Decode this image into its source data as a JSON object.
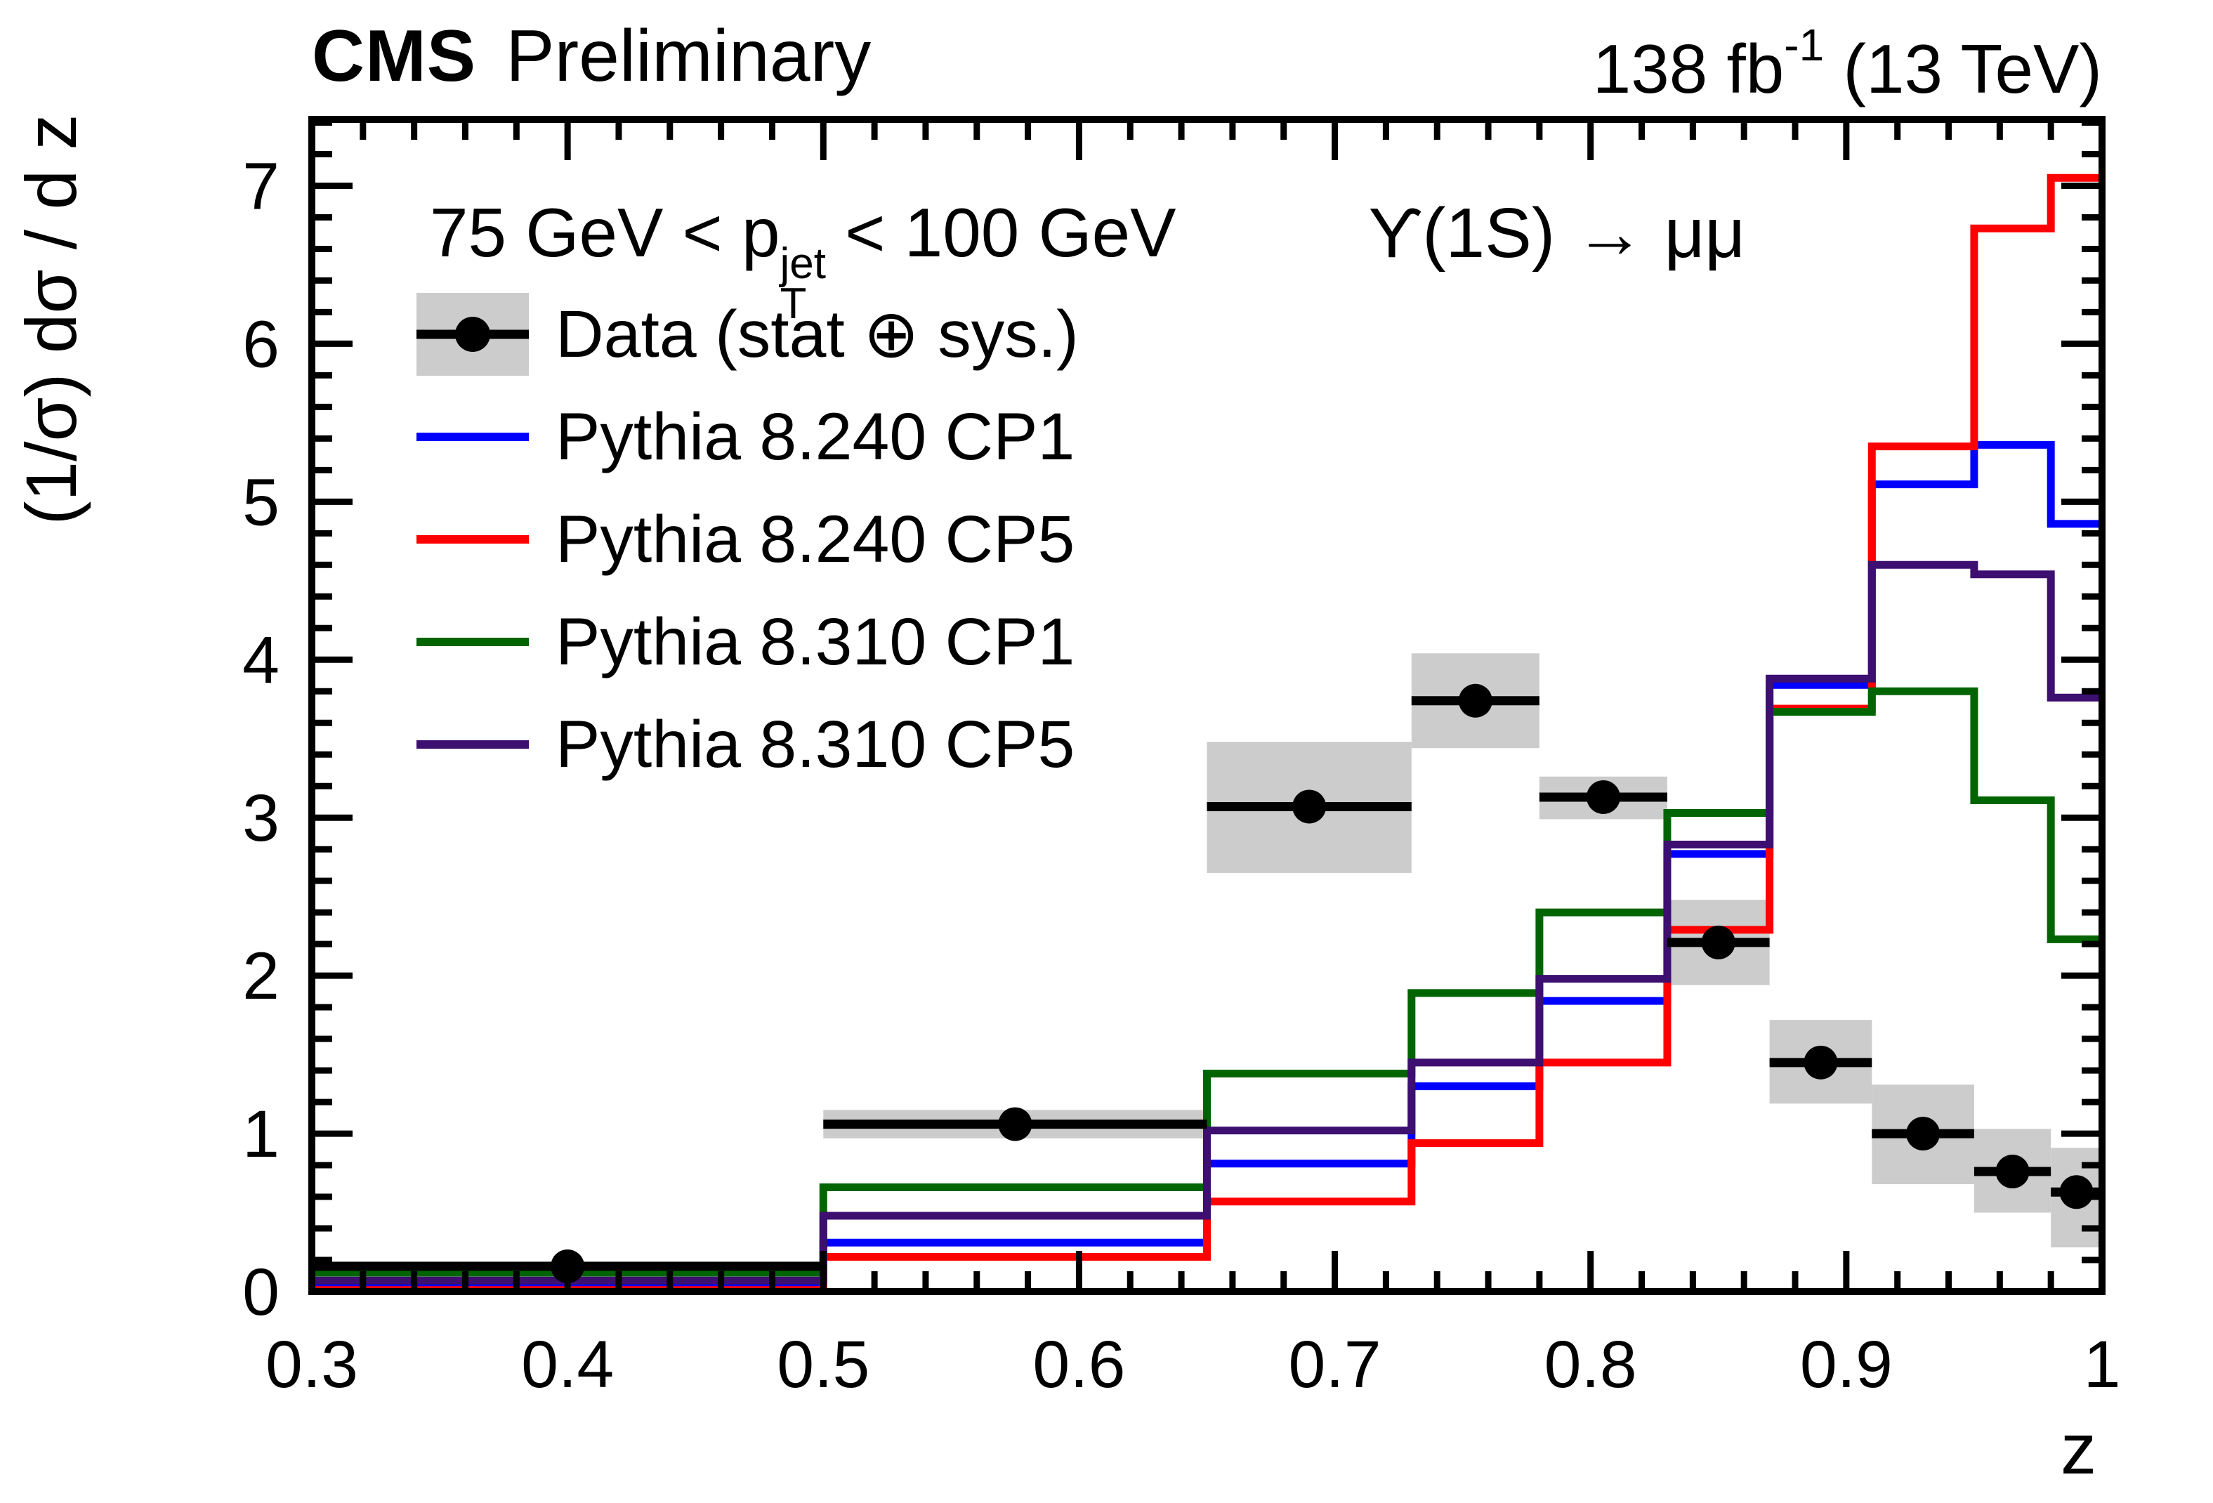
{
  "header": {
    "experiment": "CMS",
    "status": "Preliminary",
    "lumi_prefix": "138 fb",
    "lumi_sup": "-1",
    "lumi_suffix": " (13 TeV)"
  },
  "annotations": {
    "selection_pre": "75 GeV < p",
    "selection_sup": "jet",
    "selection_sub": "T",
    "selection_post": " < 100 GeV",
    "process": "ϒ(1S) → μμ"
  },
  "legend": {
    "entries": [
      {
        "key": "data",
        "label": "Data (stat ⊕ sys.)",
        "type": "data",
        "color": "#000000",
        "band_color": "#cccccc"
      },
      {
        "key": "cp1_240",
        "label": "Pythia 8.240 CP1",
        "type": "line",
        "color": "#0000ff"
      },
      {
        "key": "cp5_240",
        "label": "Pythia 8.240 CP5",
        "type": "line",
        "color": "#ff0000"
      },
      {
        "key": "cp1_310",
        "label": "Pythia 8.310 CP1",
        "type": "line",
        "color": "#006400"
      },
      {
        "key": "cp5_310",
        "label": "Pythia 8.310 CP5",
        "type": "line",
        "color": "#3d0f70"
      }
    ]
  },
  "chart_data": {
    "type": "step-histogram-with-data-points",
    "title": "",
    "xlabel": "z",
    "ylabel": "(1/σ) dσ / d z",
    "x_range": [
      0.3,
      1.0
    ],
    "y_range": [
      0,
      7.42
    ],
    "grid": false,
    "legend_position": "upper-left-inside",
    "x_major_ticks": [
      0.3,
      0.4,
      0.5,
      0.6,
      0.7,
      0.8,
      0.9,
      1.0
    ],
    "x_tick_labels": [
      "0.3",
      "0.4",
      "0.5",
      "0.6",
      "0.7",
      "0.8",
      "0.9",
      "1"
    ],
    "x_minor_step": 0.02,
    "y_major_ticks": [
      0,
      1,
      2,
      3,
      4,
      5,
      6,
      7
    ],
    "y_tick_labels": [
      "0",
      "1",
      "2",
      "3",
      "4",
      "5",
      "6",
      "7"
    ],
    "y_minor_step": 0.2,
    "bin_edges": [
      0.3,
      0.5,
      0.65,
      0.73,
      0.78,
      0.83,
      0.87,
      0.91,
      0.95,
      0.98,
      1.0
    ],
    "data_series": {
      "name": "Data (stat ⊕ sys.)",
      "marker": "filled-circle",
      "marker_color": "#000000",
      "band_color": "#cccccc",
      "x": [
        0.4,
        0.575,
        0.69,
        0.755,
        0.805,
        0.85,
        0.89,
        0.93,
        0.965,
        0.99
      ],
      "y": [
        0.16,
        1.06,
        3.07,
        3.74,
        3.13,
        2.21,
        1.45,
        1.0,
        0.76,
        0.63
      ],
      "band_low": [
        0.13,
        0.97,
        2.65,
        3.44,
        2.99,
        1.94,
        1.19,
        0.68,
        0.5,
        0.28
      ],
      "band_high": [
        0.19,
        1.15,
        3.48,
        4.04,
        3.26,
        2.48,
        1.72,
        1.31,
        1.03,
        0.91
      ]
    },
    "mc_series": [
      {
        "name": "Pythia 8.240 CP1",
        "color": "#0000ff",
        "values": [
          0.04,
          0.31,
          0.81,
          1.3,
          1.84,
          2.77,
          3.84,
          5.11,
          5.36,
          4.86
        ]
      },
      {
        "name": "Pythia 8.240 CP5",
        "color": "#ff0000",
        "values": [
          0.01,
          0.22,
          0.57,
          0.94,
          1.45,
          2.29,
          3.69,
          5.35,
          6.73,
          7.05
        ]
      },
      {
        "name": "Pythia 8.310 CP1",
        "color": "#006400",
        "values": [
          0.12,
          0.66,
          1.38,
          1.89,
          2.4,
          3.03,
          3.67,
          3.8,
          3.11,
          2.23
        ]
      },
      {
        "name": "Pythia 8.310 CP5",
        "color": "#3d0f70",
        "values": [
          0.07,
          0.48,
          1.02,
          1.45,
          1.98,
          2.83,
          3.88,
          4.6,
          4.54,
          3.76
        ]
      }
    ]
  }
}
